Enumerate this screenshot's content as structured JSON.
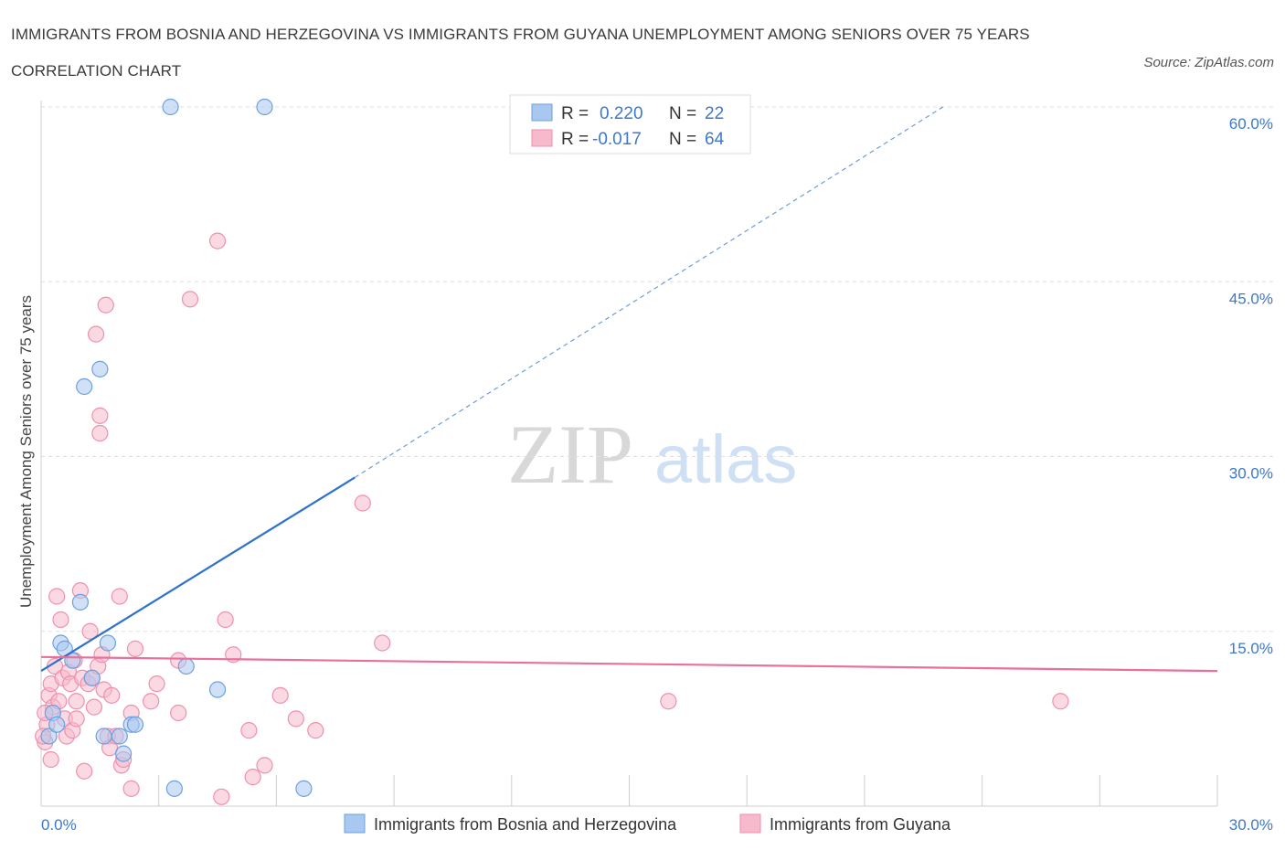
{
  "title": "IMMIGRANTS FROM BOSNIA AND HERZEGOVINA VS IMMIGRANTS FROM GUYANA UNEMPLOYMENT AMONG SENIORS OVER 75 YEARS CORRELATION CHART",
  "source": "Source: ZipAtlas.com",
  "watermark": {
    "zip": "ZIP",
    "atlas": "atlas"
  },
  "colors": {
    "blue_fill": "#a9c8f0",
    "blue_stroke": "#6b9fe0",
    "blue_line": "#2f72cc",
    "pink_fill": "#f7b9cc",
    "pink_stroke": "#ef8fad",
    "pink_line": "#e8709a",
    "value_text": "#3d78c9"
  },
  "chart_data": {
    "type": "scatter",
    "xlabel": "",
    "ylabel": "Unemployment Among Seniors over 75 years",
    "xlim": [
      0,
      30
    ],
    "ylim": [
      0,
      60
    ],
    "x_tick_labels": [
      "0.0%",
      "30.0%"
    ],
    "y_ticks": [
      15,
      30,
      45,
      60
    ],
    "y_tick_labels": [
      "15.0%",
      "30.0%",
      "45.0%",
      "60.0%"
    ],
    "grid": true,
    "legend_position": "top-center",
    "stats": [
      {
        "r_label": "R =",
        "r_value": "0.220",
        "n_label": "N =",
        "n_value": "22"
      },
      {
        "r_label": "R =",
        "r_value": "-0.017",
        "n_label": "N =",
        "n_value": "64"
      }
    ],
    "series": [
      {
        "name": "Immigrants from Bosnia and Herzegovina",
        "color": "blue",
        "trend": {
          "x0": 0,
          "y0": 11.6,
          "x1": 8.0,
          "y1": 28.2,
          "dash_to_x": 23.0,
          "dash_to_y": 60.0
        },
        "points": [
          [
            0.2,
            6.0
          ],
          [
            0.3,
            8.0
          ],
          [
            0.4,
            7.0
          ],
          [
            0.5,
            14.0
          ],
          [
            0.6,
            13.5
          ],
          [
            0.8,
            12.5
          ],
          [
            1.0,
            17.5
          ],
          [
            1.1,
            36.0
          ],
          [
            1.3,
            11.0
          ],
          [
            1.5,
            37.5
          ],
          [
            1.7,
            14.0
          ],
          [
            1.6,
            6.0
          ],
          [
            2.0,
            6.0
          ],
          [
            2.1,
            4.5
          ],
          [
            2.3,
            7.0
          ],
          [
            2.4,
            7.0
          ],
          [
            3.3,
            60.0
          ],
          [
            3.4,
            1.5
          ],
          [
            3.7,
            12.0
          ],
          [
            4.5,
            10.0
          ],
          [
            5.7,
            60.0
          ],
          [
            6.7,
            1.5
          ]
        ]
      },
      {
        "name": "Immigrants from Guyana",
        "color": "pink",
        "trend": {
          "x0": 0,
          "y0": 12.8,
          "x1": 30,
          "y1": 11.6
        },
        "points": [
          [
            0.1,
            5.5
          ],
          [
            0.15,
            7.0
          ],
          [
            0.2,
            9.5
          ],
          [
            0.25,
            10.5
          ],
          [
            0.3,
            8.5
          ],
          [
            0.35,
            12.0
          ],
          [
            0.4,
            18.0
          ],
          [
            0.45,
            9.0
          ],
          [
            0.5,
            16.0
          ],
          [
            0.55,
            11.0
          ],
          [
            0.6,
            7.5
          ],
          [
            0.65,
            6.0
          ],
          [
            0.7,
            11.5
          ],
          [
            0.75,
            10.5
          ],
          [
            0.8,
            6.5
          ],
          [
            0.85,
            12.5
          ],
          [
            0.9,
            7.5
          ],
          [
            0.9,
            9.0
          ],
          [
            1.0,
            18.5
          ],
          [
            1.05,
            11.0
          ],
          [
            1.1,
            3.0
          ],
          [
            1.2,
            10.5
          ],
          [
            1.25,
            15.0
          ],
          [
            1.3,
            11.0
          ],
          [
            1.35,
            8.5
          ],
          [
            1.4,
            40.5
          ],
          [
            1.45,
            12.0
          ],
          [
            1.5,
            32.0
          ],
          [
            1.5,
            33.5
          ],
          [
            1.55,
            13.0
          ],
          [
            1.6,
            10.0
          ],
          [
            1.65,
            43.0
          ],
          [
            1.7,
            6.0
          ],
          [
            1.75,
            5.0
          ],
          [
            1.8,
            9.5
          ],
          [
            1.9,
            6.0
          ],
          [
            2.0,
            18.0
          ],
          [
            2.05,
            3.5
          ],
          [
            2.1,
            4.0
          ],
          [
            2.3,
            8.0
          ],
          [
            2.3,
            1.5
          ],
          [
            2.4,
            13.5
          ],
          [
            2.8,
            9.0
          ],
          [
            2.95,
            10.5
          ],
          [
            3.5,
            8.0
          ],
          [
            3.5,
            12.5
          ],
          [
            3.8,
            43.5
          ],
          [
            4.5,
            48.5
          ],
          [
            4.6,
            0.8
          ],
          [
            4.7,
            16.0
          ],
          [
            4.9,
            13.0
          ],
          [
            5.3,
            6.5
          ],
          [
            5.4,
            2.5
          ],
          [
            5.7,
            3.5
          ],
          [
            6.1,
            9.5
          ],
          [
            6.5,
            7.5
          ],
          [
            7.0,
            6.5
          ],
          [
            8.2,
            26.0
          ],
          [
            8.7,
            14.0
          ],
          [
            16.0,
            9.0
          ],
          [
            26.0,
            9.0
          ],
          [
            0.05,
            6.0
          ],
          [
            0.1,
            8.0
          ],
          [
            0.25,
            4.0
          ]
        ]
      }
    ]
  }
}
